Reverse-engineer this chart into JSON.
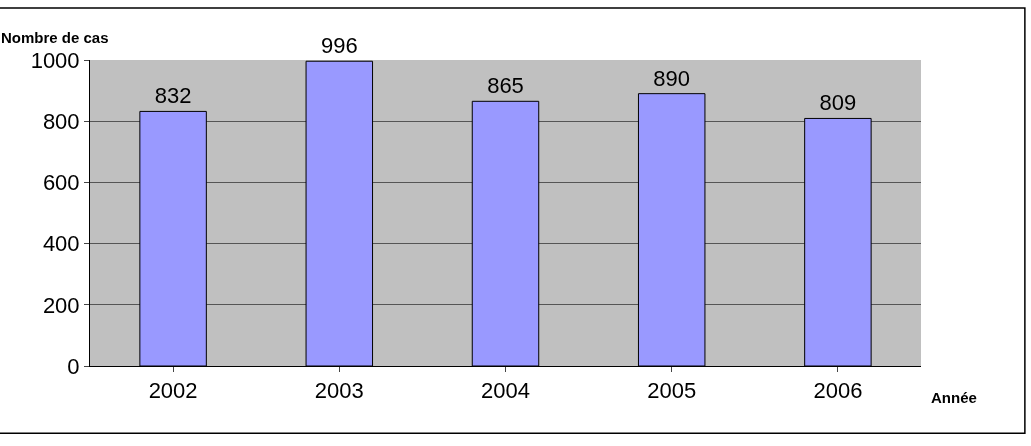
{
  "chart_data": {
    "type": "bar",
    "ylabel": "Nombre de cas",
    "xlabel": "Année",
    "categories": [
      "2002",
      "2003",
      "2004",
      "2005",
      "2006"
    ],
    "values": [
      832,
      996,
      865,
      890,
      809
    ],
    "color": "#9999ff",
    "ylim": [
      0,
      1000
    ],
    "yticks": [
      0,
      200,
      400,
      600,
      800,
      1000
    ],
    "grid": "y",
    "data_labels": true
  }
}
